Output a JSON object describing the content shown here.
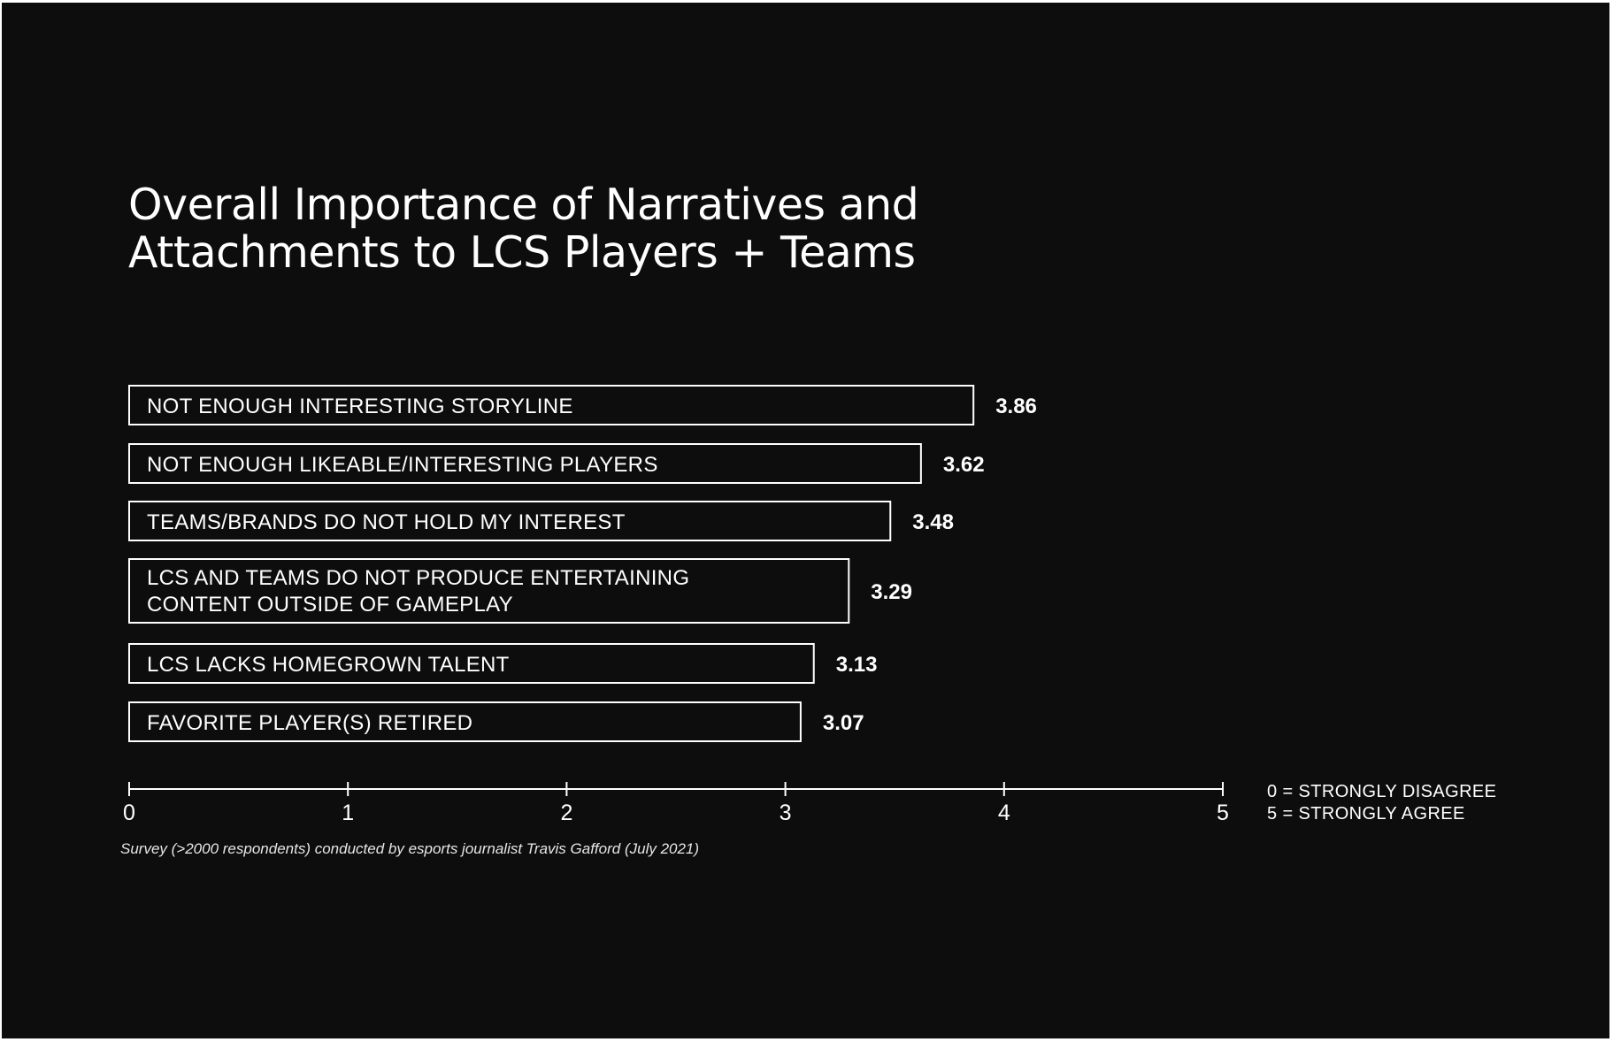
{
  "title_lines": [
    "Overall Importance of Narratives and",
    "Attachments to LCS Players + Teams"
  ],
  "chart_data": {
    "type": "bar",
    "orientation": "horizontal",
    "title": "Overall Importance of Narratives and Attachments to LCS Players + Teams",
    "categories": [
      [
        "NOT ENOUGH INTERESTING STORYLINE"
      ],
      [
        "NOT ENOUGH LIKEABLE/INTERESTING PLAYERS"
      ],
      [
        "TEAMS/BRANDS DO NOT HOLD MY INTEREST"
      ],
      [
        "LCS AND TEAMS DO NOT PRODUCE ENTERTAINING",
        "CONTENT OUTSIDE OF GAMEPLAY"
      ],
      [
        "LCS LACKS HOMEGROWN TALENT"
      ],
      [
        "FAVORITE PLAYER(S) RETIRED"
      ]
    ],
    "values": [
      3.86,
      3.62,
      3.48,
      3.29,
      3.13,
      3.07
    ],
    "value_labels": [
      "3.86",
      "3.62",
      "3.48",
      "3.29",
      "3.13",
      "3.07"
    ],
    "xlim": [
      0,
      5
    ],
    "xticks": [
      "0",
      "1",
      "2",
      "3",
      "4",
      "5"
    ],
    "grid": false,
    "bar_fill": "#0d0d0d",
    "bar_stroke": "#ffffff"
  },
  "legend_lines": [
    "0 = STRONGLY DISAGREE",
    "5 = STRONGLY AGREE"
  ],
  "note": "Survey (>2000 respondents) conducted by esports journalist Travis Gafford (July 2021)"
}
